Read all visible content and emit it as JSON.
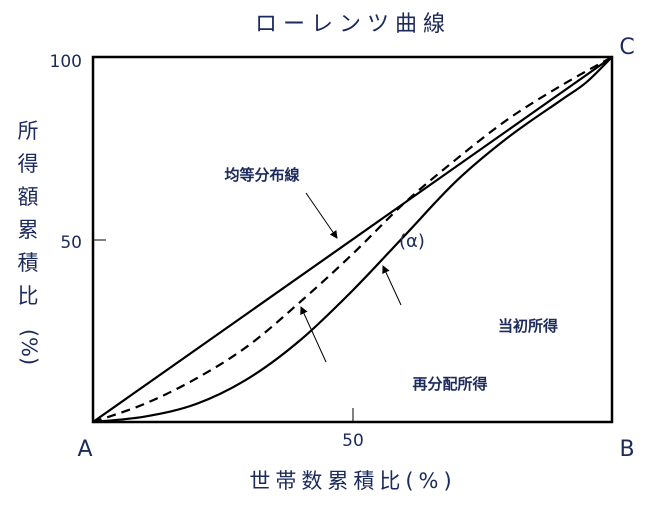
{
  "chart_data": {
    "type": "line",
    "title": "ローレンツ曲線",
    "xlabel": "世帯数累積比(%)",
    "ylabel": "所得額累積比(%)",
    "ylabel_chars": [
      "所",
      "得",
      "額",
      "累",
      "積",
      "比",
      "(%)"
    ],
    "xlim": [
      0,
      100
    ],
    "ylim": [
      0,
      100
    ],
    "x_ticks": [
      "50"
    ],
    "y_ticks": [
      "100",
      "50"
    ],
    "points": {
      "A": "A",
      "B": "B",
      "C": "C"
    },
    "region_label": "(α)",
    "series": [
      {
        "name": "均等分布線",
        "style": "solid",
        "x": [
          0,
          100
        ],
        "y": [
          0,
          100
        ]
      },
      {
        "name": "再分配所得",
        "style": "dashed",
        "x": [
          0,
          10,
          20,
          30,
          40,
          50,
          60,
          70,
          80,
          90,
          100
        ],
        "y": [
          0,
          5,
          12,
          21,
          33,
          46,
          60,
          72,
          83,
          92,
          100
        ]
      },
      {
        "name": "当初所得",
        "style": "solid",
        "x": [
          0,
          10,
          20,
          30,
          40,
          50,
          60,
          70,
          80,
          90,
          95,
          100
        ],
        "y": [
          0,
          1.5,
          5,
          12,
          22.5,
          36,
          51,
          66,
          78,
          88,
          93,
          100
        ]
      }
    ],
    "colors": {
      "text": "#1c2a5c",
      "lines": "#000000"
    }
  }
}
